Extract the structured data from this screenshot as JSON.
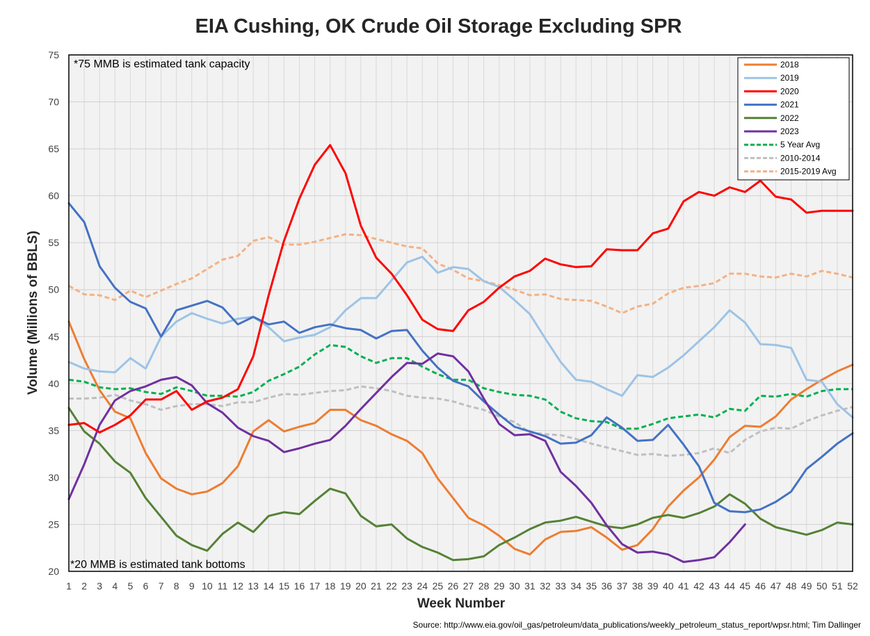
{
  "chart_data": {
    "type": "line",
    "title": "EIA Cushing, OK Crude Oil Storage Excluding SPR",
    "xlabel": "Week Number",
    "ylabel": "Volume (Millions of BBLS)",
    "source": "Source: http://www.eia.gov/oil_gas/petroleum/data_publications/weekly_petroleum_status_report/wpsr.html; Tim Dallinger",
    "annotations": [
      "*75 MMB is estimated tank capacity",
      "*20 MMB is estimated tank bottoms"
    ],
    "xlim": [
      1,
      52
    ],
    "ylim": [
      20,
      75
    ],
    "yticks": [
      20,
      25,
      30,
      35,
      40,
      45,
      50,
      55,
      60,
      65,
      70,
      75
    ],
    "x": [
      1,
      2,
      3,
      4,
      5,
      6,
      7,
      8,
      9,
      10,
      11,
      12,
      13,
      14,
      15,
      16,
      17,
      18,
      19,
      20,
      21,
      22,
      23,
      24,
      25,
      26,
      27,
      28,
      29,
      30,
      31,
      32,
      33,
      34,
      35,
      36,
      37,
      38,
      39,
      40,
      41,
      42,
      43,
      44,
      45,
      46,
      47,
      48,
      49,
      50,
      51,
      52
    ],
    "grid": true,
    "legend_position": "top-right",
    "series": [
      {
        "name": "2018",
        "color": "#ED7D31",
        "dash": "solid",
        "values": [
          46.6,
          42.6,
          39.3,
          37.0,
          36.3,
          32.6,
          29.9,
          28.8,
          28.2,
          28.5,
          29.4,
          31.2,
          34.9,
          36.1,
          34.9,
          35.4,
          35.8,
          37.2,
          37.2,
          36.1,
          35.5,
          34.6,
          33.9,
          32.6,
          29.9,
          27.8,
          25.7,
          24.9,
          23.8,
          22.4,
          21.8,
          23.4,
          24.2,
          24.3,
          24.7,
          23.6,
          22.3,
          22.8,
          24.5,
          26.9,
          28.6,
          30.0,
          31.9,
          34.3,
          35.5,
          35.4,
          36.5,
          38.3,
          39.4,
          40.4,
          41.3,
          42.0
        ]
      },
      {
        "name": "2019",
        "color": "#9DC3E6",
        "dash": "solid",
        "values": [
          42.3,
          41.6,
          41.3,
          41.2,
          42.7,
          41.6,
          45.0,
          46.6,
          47.5,
          46.9,
          46.4,
          46.9,
          47.1,
          46.0,
          44.5,
          44.9,
          45.2,
          46.0,
          47.8,
          49.1,
          49.1,
          51.0,
          52.9,
          53.5,
          51.8,
          52.4,
          52.2,
          50.9,
          50.3,
          48.9,
          47.4,
          44.8,
          42.3,
          40.4,
          40.2,
          39.4,
          38.7,
          40.9,
          40.7,
          41.7,
          43.0,
          44.5,
          46.0,
          47.8,
          46.5,
          44.2,
          44.1,
          43.8,
          40.4,
          40.2,
          37.8,
          36.4
        ]
      },
      {
        "name": "2020",
        "color": "#FF0000",
        "dash": "solid",
        "values": [
          35.6,
          35.8,
          34.8,
          35.6,
          36.6,
          38.3,
          38.3,
          39.2,
          37.2,
          38.1,
          38.5,
          39.4,
          42.9,
          49.4,
          55.2,
          59.7,
          63.3,
          65.4,
          62.4,
          56.8,
          53.4,
          51.7,
          49.4,
          46.8,
          45.8,
          45.6,
          47.8,
          48.7,
          50.2,
          51.4,
          52.0,
          53.3,
          52.7,
          52.4,
          52.5,
          54.3,
          54.2,
          54.2,
          56.0,
          56.5,
          59.4,
          60.4,
          60.0,
          60.9,
          60.4,
          61.6,
          59.9,
          59.6,
          58.2,
          58.4,
          58.4,
          58.4
        ]
      },
      {
        "name": "2021",
        "color": "#4472C4",
        "dash": "solid",
        "values": [
          59.2,
          57.2,
          52.5,
          50.2,
          48.7,
          48.0,
          45.0,
          47.8,
          48.3,
          48.8,
          48.1,
          46.3,
          47.1,
          46.3,
          46.6,
          45.4,
          46.0,
          46.3,
          45.9,
          45.7,
          44.8,
          45.6,
          45.7,
          43.5,
          41.7,
          40.3,
          39.7,
          38.1,
          36.7,
          35.4,
          34.9,
          34.4,
          33.6,
          33.7,
          34.5,
          36.4,
          35.3,
          33.9,
          34.0,
          35.6,
          33.5,
          31.2,
          27.3,
          26.4,
          26.3,
          26.6,
          27.4,
          28.5,
          30.9,
          32.2,
          33.6,
          34.7
        ]
      },
      {
        "name": "2022",
        "color": "#548235",
        "dash": "solid",
        "values": [
          37.4,
          34.9,
          33.6,
          31.7,
          30.5,
          27.8,
          25.8,
          23.8,
          22.8,
          22.2,
          24.0,
          25.2,
          24.2,
          25.9,
          26.3,
          26.1,
          27.5,
          28.8,
          28.3,
          25.9,
          24.8,
          25.0,
          23.5,
          22.6,
          22.0,
          21.2,
          21.3,
          21.6,
          22.8,
          23.6,
          24.5,
          25.2,
          25.4,
          25.8,
          25.3,
          24.8,
          24.6,
          25.0,
          25.7,
          26.0,
          25.7,
          26.2,
          26.9,
          28.2,
          27.2,
          25.6,
          24.7,
          24.3,
          23.9,
          24.4,
          25.2,
          25.0
        ]
      },
      {
        "name": "2023",
        "color": "#7030A0",
        "dash": "solid",
        "values": [
          27.7,
          31.4,
          35.6,
          38.2,
          39.2,
          39.7,
          40.4,
          40.7,
          39.8,
          37.9,
          36.9,
          35.3,
          34.4,
          33.9,
          32.7,
          33.1,
          33.6,
          34.0,
          35.5,
          37.3,
          39.0,
          40.7,
          42.2,
          42.1,
          43.2,
          42.9,
          41.3,
          38.4,
          35.7,
          34.5,
          34.6,
          33.9,
          30.6,
          29.1,
          27.3,
          24.9,
          22.9,
          22.0,
          22.1,
          21.8,
          21.0,
          21.2,
          21.5,
          23.1,
          25.0,
          null,
          null,
          null,
          null,
          null,
          null,
          null
        ]
      },
      {
        "name": "5 Year Avg",
        "color": "#00B050",
        "dash": "dashed",
        "values": [
          40.4,
          40.2,
          39.6,
          39.4,
          39.5,
          39.1,
          38.9,
          39.6,
          39.2,
          38.7,
          38.7,
          38.6,
          39.1,
          40.3,
          41.0,
          41.8,
          43.1,
          44.1,
          43.9,
          42.9,
          42.2,
          42.7,
          42.7,
          41.8,
          41.0,
          40.4,
          40.4,
          39.5,
          39.1,
          38.8,
          38.7,
          38.3,
          37.0,
          36.3,
          36.0,
          35.9,
          35.2,
          35.2,
          35.7,
          36.3,
          36.5,
          36.7,
          36.4,
          37.3,
          37.1,
          38.7,
          38.6,
          38.9,
          38.6,
          39.2,
          39.4,
          39.4
        ]
      },
      {
        "name": "2010-2014",
        "color": "#BFBFBF",
        "dash": "dashed",
        "values": [
          38.4,
          38.4,
          38.5,
          38.8,
          38.2,
          37.8,
          37.2,
          37.6,
          37.8,
          37.8,
          37.6,
          38.0,
          38.0,
          38.5,
          38.9,
          38.8,
          39.0,
          39.2,
          39.3,
          39.7,
          39.5,
          39.2,
          38.7,
          38.5,
          38.4,
          38.1,
          37.6,
          37.2,
          36.5,
          35.9,
          34.8,
          34.6,
          34.5,
          34.1,
          33.6,
          33.2,
          32.8,
          32.4,
          32.5,
          32.3,
          32.4,
          32.6,
          33.1,
          32.6,
          34.0,
          34.9,
          35.3,
          35.2,
          36.0,
          36.6,
          37.1,
          37.5
        ]
      },
      {
        "name": "2015-2019 Avg",
        "color": "#F4B183",
        "dash": "dashed",
        "values": [
          50.4,
          49.5,
          49.4,
          48.9,
          49.9,
          49.2,
          49.9,
          50.6,
          51.2,
          52.2,
          53.2,
          53.6,
          55.2,
          55.6,
          54.8,
          54.8,
          55.1,
          55.5,
          55.9,
          55.8,
          55.4,
          55.0,
          54.6,
          54.4,
          52.8,
          52.1,
          51.2,
          50.9,
          50.5,
          50.0,
          49.4,
          49.5,
          49.0,
          48.9,
          48.8,
          48.2,
          47.5,
          48.2,
          48.5,
          49.6,
          50.2,
          50.4,
          50.7,
          51.7,
          51.7,
          51.4,
          51.3,
          51.7,
          51.4,
          52.0,
          51.7,
          51.3
        ]
      }
    ]
  }
}
